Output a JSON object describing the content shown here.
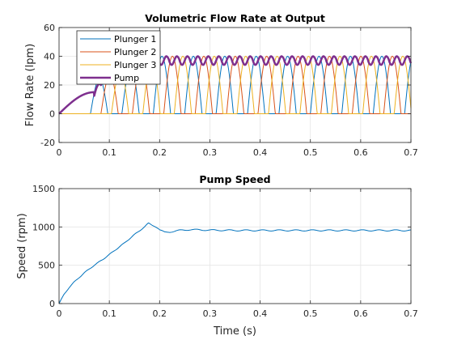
{
  "figure": {
    "background": "#ffffff"
  },
  "chart_data": [
    {
      "type": "line",
      "title": "Volumetric Flow Rate at Output",
      "xlabel": "",
      "ylabel": "Flow Rate (lpm)",
      "xlim": [
        0,
        0.7
      ],
      "ylim": [
        -20,
        60
      ],
      "xticks": [
        0,
        0.1,
        0.2,
        0.3,
        0.4,
        0.5,
        0.6,
        0.7
      ],
      "yticks": [
        -20,
        0,
        20,
        40,
        60
      ],
      "grid": true,
      "legend_position": "top-left",
      "series": [
        {
          "name": "Plunger 1",
          "color": "#0072BD",
          "phase": 0,
          "line_width": 1
        },
        {
          "name": "Plunger 2",
          "color": "#D95319",
          "phase": 1,
          "line_width": 1
        },
        {
          "name": "Plunger 3",
          "color": "#EDB120",
          "phase": 2,
          "line_width": 1
        },
        {
          "name": "Pump",
          "color": "#7E2F8E",
          "line_width": 2.5
        }
      ],
      "notes_model": {
        "startup_peak_value": 15,
        "startup_peak_time": 0.065,
        "steady_period_s": 0.0625,
        "steady_plunger_peak": 40,
        "steady_pump_band": [
          34,
          41
        ]
      }
    },
    {
      "type": "line",
      "title": "Pump Speed",
      "xlabel": "Time (s)",
      "ylabel": "Speed (rpm)",
      "xlim": [
        0,
        0.7
      ],
      "ylim": [
        0,
        1500
      ],
      "xticks": [
        0,
        0.1,
        0.2,
        0.3,
        0.4,
        0.5,
        0.6,
        0.7
      ],
      "yticks": [
        0,
        500,
        1000,
        1500
      ],
      "grid": true,
      "series": [
        {
          "name": "",
          "color": "#0072BD",
          "line_width": 1,
          "points": [
            [
              0,
              0
            ],
            [
              0.01,
              120
            ],
            [
              0.02,
              210
            ],
            [
              0.03,
              280
            ],
            [
              0.05,
              400
            ],
            [
              0.07,
              500
            ],
            [
              0.09,
              590
            ],
            [
              0.11,
              690
            ],
            [
              0.13,
              790
            ],
            [
              0.15,
              900
            ],
            [
              0.17,
              1000
            ],
            [
              0.178,
              1050
            ],
            [
              0.19,
              1010
            ],
            [
              0.2,
              960
            ],
            [
              0.21,
              930
            ],
            [
              0.22,
              935
            ],
            [
              0.24,
              955
            ],
            [
              0.26,
              965
            ],
            [
              0.28,
              962
            ],
            [
              0.3,
              958
            ],
            [
              0.35,
              955
            ],
            [
              0.4,
              955
            ],
            [
              0.5,
              955
            ],
            [
              0.6,
              955
            ],
            [
              0.7,
              955
            ]
          ]
        }
      ]
    }
  ]
}
